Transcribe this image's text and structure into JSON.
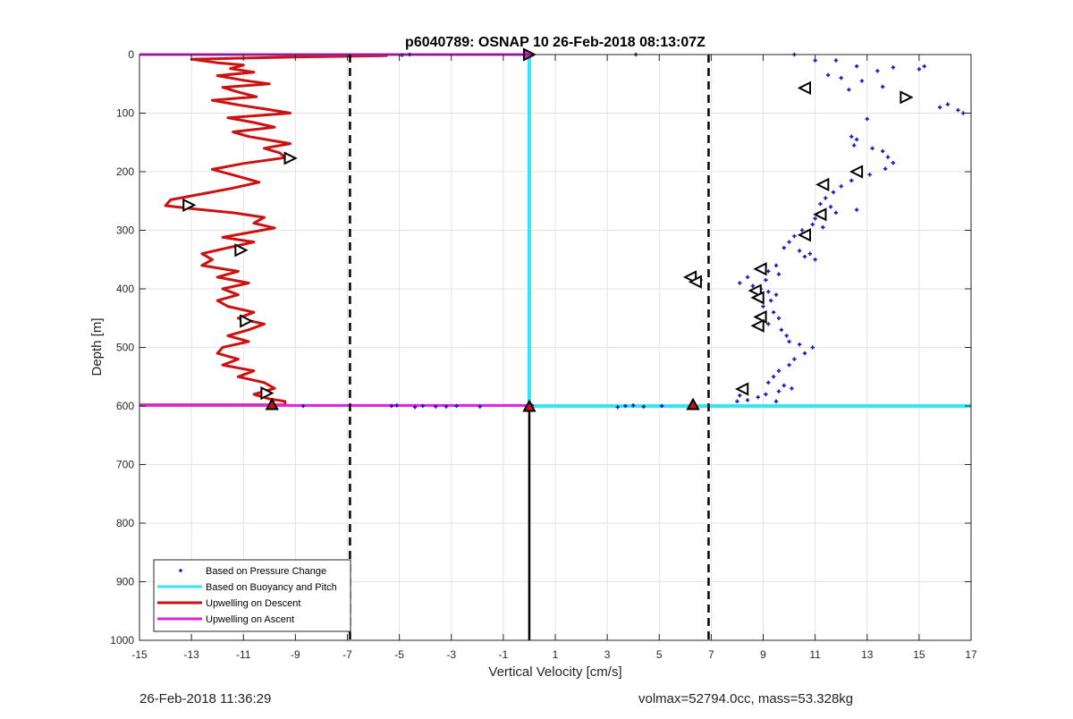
{
  "footer": {
    "left": "26-Feb-2018 11:36:29",
    "right": "volmax=52794.0cc, mass=53.328kg"
  },
  "colors": {
    "pressure": "#1515c8",
    "buoyancy": "#33e6f0",
    "descent": "#cc1111",
    "ascent": "#e020e0",
    "grid": "#e3e3e3",
    "dashed_lines": "#000000"
  },
  "chart_data": {
    "type": "scatter",
    "title": "p6040789: OSNAP 10 26-Feb-2018 08:13:07Z",
    "xlabel": "Vertical Velocity [cm/s]",
    "ylabel": "Depth [m]",
    "xlim": [
      -15,
      17
    ],
    "ylim": [
      1000,
      0
    ],
    "y_reversed": true,
    "xticks": [
      "-15",
      "-13",
      "-11",
      "-9",
      "-7",
      "-5",
      "-3",
      "-1",
      "1",
      "3",
      "5",
      "7",
      "9",
      "11",
      "13",
      "15",
      "17"
    ],
    "yticks": [
      "0",
      "100",
      "200",
      "300",
      "400",
      "500",
      "600",
      "700",
      "800",
      "900",
      "1000"
    ],
    "grid": true,
    "legend_position": "bottom-left",
    "legend": [
      {
        "label": "Based on Pressure Change",
        "style": "dot",
        "color": "#1515c8"
      },
      {
        "label": "Based on Buoyancy and Pitch",
        "style": "line",
        "color": "#33e6f0"
      },
      {
        "label": "Upwelling on Descent",
        "style": "line",
        "color": "#cc1111"
      },
      {
        "label": "Upwelling on Ascent",
        "style": "line",
        "color": "#e020e0"
      }
    ],
    "reference_lines": {
      "dashed_x": [
        -6.9,
        6.9
      ],
      "solid_x": 0,
      "solid_from_depth": 600
    },
    "series": [
      {
        "name": "Based on Pressure Change",
        "type": "scatter",
        "points": [
          [
            10.2,
            0
          ],
          [
            11,
            10
          ],
          [
            11.8,
            10
          ],
          [
            12.6,
            20
          ],
          [
            13.4,
            28
          ],
          [
            14,
            22
          ],
          [
            15.2,
            20
          ],
          [
            15,
            25
          ],
          [
            11.5,
            35
          ],
          [
            12,
            40
          ],
          [
            12.8,
            45
          ],
          [
            13.6,
            55
          ],
          [
            12.3,
            60
          ],
          [
            14.5,
            70
          ],
          [
            15.8,
            90
          ],
          [
            16.1,
            85
          ],
          [
            16.5,
            95
          ],
          [
            16.7,
            100
          ],
          [
            13,
            110
          ],
          [
            12.4,
            140
          ],
          [
            12.6,
            145
          ],
          [
            12.5,
            155
          ],
          [
            13.2,
            160
          ],
          [
            13.6,
            165
          ],
          [
            13.8,
            175
          ],
          [
            14,
            185
          ],
          [
            13.7,
            195
          ],
          [
            13.1,
            205
          ],
          [
            12.4,
            215
          ],
          [
            12,
            225
          ],
          [
            11.7,
            235
          ],
          [
            11.4,
            245
          ],
          [
            11.2,
            255
          ],
          [
            11.6,
            260
          ],
          [
            12.6,
            265
          ],
          [
            11.8,
            270
          ],
          [
            11,
            280
          ],
          [
            10.9,
            290
          ],
          [
            11.3,
            295
          ],
          [
            10.5,
            300
          ],
          [
            10.2,
            310
          ],
          [
            10,
            320
          ],
          [
            9.8,
            330
          ],
          [
            10.4,
            335
          ],
          [
            10.8,
            340
          ],
          [
            10.6,
            345
          ],
          [
            11,
            350
          ],
          [
            9.5,
            360
          ],
          [
            9.2,
            370
          ],
          [
            9.6,
            375
          ],
          [
            9.1,
            385
          ],
          [
            8.6,
            395
          ],
          [
            8.9,
            400
          ],
          [
            8.4,
            380
          ],
          [
            8.1,
            390
          ],
          [
            9.2,
            405
          ],
          [
            9.5,
            410
          ],
          [
            9.3,
            420
          ],
          [
            9,
            430
          ],
          [
            9.4,
            440
          ],
          [
            9.6,
            450
          ],
          [
            9.2,
            460
          ],
          [
            9.7,
            470
          ],
          [
            9.9,
            480
          ],
          [
            10,
            490
          ],
          [
            10.4,
            495
          ],
          [
            10.9,
            500
          ],
          [
            10.6,
            510
          ],
          [
            10.2,
            520
          ],
          [
            10,
            530
          ],
          [
            9.6,
            540
          ],
          [
            9.4,
            550
          ],
          [
            9.2,
            560
          ],
          [
            9.8,
            565
          ],
          [
            10.1,
            570
          ],
          [
            9.6,
            575
          ],
          [
            9.1,
            580
          ],
          [
            8.8,
            585
          ],
          [
            8.4,
            590
          ],
          [
            8.1,
            582
          ],
          [
            9.5,
            592
          ],
          [
            8,
            592
          ],
          [
            3.4,
            602
          ],
          [
            3.7,
            600
          ],
          [
            4,
            599
          ],
          [
            4.4,
            601
          ],
          [
            5.1,
            600
          ],
          [
            -3.6,
            601
          ],
          [
            -4.1,
            600
          ],
          [
            -4.4,
            602
          ],
          [
            -3.2,
            601
          ],
          [
            -2.8,
            600
          ],
          [
            -1.9,
            601
          ],
          [
            -5.1,
            599
          ],
          [
            -5.3,
            600
          ],
          [
            -8.7,
            600
          ],
          [
            -0.1,
            601
          ],
          [
            0.1,
            599
          ],
          [
            4.1,
            0
          ],
          [
            -4.9,
            1
          ],
          [
            -4.6,
            0
          ],
          [
            6.6,
            385
          ]
        ]
      },
      {
        "name": "Based on Buoyancy and Pitch",
        "type": "line",
        "segments": [
          [
            [
              0,
              0
            ],
            [
              0,
              600
            ]
          ],
          [
            [
              0,
              600
            ],
            [
              17,
              600
            ]
          ]
        ]
      },
      {
        "name": "Upwelling on Descent",
        "type": "line",
        "points": [
          [
            -15,
            0
          ],
          [
            -8,
            0
          ],
          [
            -5.5,
            2
          ],
          [
            -8.8,
            4
          ],
          [
            -13,
            8
          ],
          [
            -12,
            14
          ],
          [
            -11,
            18
          ],
          [
            -11.5,
            24
          ],
          [
            -10.6,
            30
          ],
          [
            -12,
            36
          ],
          [
            -11,
            44
          ],
          [
            -10,
            50
          ],
          [
            -11.8,
            56
          ],
          [
            -11.2,
            64
          ],
          [
            -10.5,
            72
          ],
          [
            -12.2,
            78
          ],
          [
            -11.2,
            86
          ],
          [
            -10,
            94
          ],
          [
            -9.2,
            100
          ],
          [
            -11.6,
            108
          ],
          [
            -10.6,
            116
          ],
          [
            -9.8,
            124
          ],
          [
            -11.4,
            132
          ],
          [
            -10.8,
            140
          ],
          [
            -10,
            146
          ],
          [
            -9.2,
            152
          ],
          [
            -10.2,
            160
          ],
          [
            -9.6,
            168
          ],
          [
            -9.4,
            176
          ],
          [
            -11,
            186
          ],
          [
            -12.2,
            196
          ],
          [
            -11.2,
            208
          ],
          [
            -10.4,
            218
          ],
          [
            -11.4,
            228
          ],
          [
            -12.6,
            238
          ],
          [
            -13.8,
            248
          ],
          [
            -14,
            258
          ],
          [
            -12.8,
            264
          ],
          [
            -11.4,
            270
          ],
          [
            -10.2,
            278
          ],
          [
            -10.6,
            288
          ],
          [
            -9.8,
            296
          ],
          [
            -10.8,
            304
          ],
          [
            -11.8,
            312
          ],
          [
            -10.6,
            320
          ],
          [
            -11.6,
            330
          ],
          [
            -12.6,
            340
          ],
          [
            -12.2,
            350
          ],
          [
            -12.6,
            360
          ],
          [
            -11.2,
            370
          ],
          [
            -12,
            380
          ],
          [
            -10.8,
            390
          ],
          [
            -11.8,
            400
          ],
          [
            -11.2,
            410
          ],
          [
            -12,
            420
          ],
          [
            -11.6,
            430
          ],
          [
            -10.6,
            440
          ],
          [
            -11.2,
            450
          ],
          [
            -10.2,
            460
          ],
          [
            -10.8,
            470
          ],
          [
            -11.6,
            480
          ],
          [
            -10.8,
            490
          ],
          [
            -11.8,
            500
          ],
          [
            -12,
            510
          ],
          [
            -11.2,
            520
          ],
          [
            -11.8,
            530
          ],
          [
            -10.6,
            540
          ],
          [
            -11.2,
            550
          ],
          [
            -10.2,
            560
          ],
          [
            -9.8,
            570
          ],
          [
            -10.6,
            580
          ],
          [
            -10,
            588
          ],
          [
            -9.4,
            592
          ],
          [
            -9.4,
            598
          ],
          [
            -15,
            598
          ]
        ]
      },
      {
        "name": "Upwelling on Ascent",
        "type": "line",
        "segments": [
          [
            [
              -15,
              0
            ],
            [
              0,
              0
            ]
          ],
          [
            [
              -15,
              599
            ],
            [
              0,
              599
            ]
          ]
        ]
      }
    ],
    "markers": [
      {
        "x": 0,
        "y": 0,
        "shape": "triangle-right",
        "fill": "#e020e0"
      },
      {
        "x": 10.6,
        "y": 57,
        "shape": "triangle-left"
      },
      {
        "x": 14.5,
        "y": 73,
        "shape": "triangle-right"
      },
      {
        "x": -9.2,
        "y": 177,
        "shape": "triangle-right"
      },
      {
        "x": 12.6,
        "y": 200,
        "shape": "triangle-left"
      },
      {
        "x": 11.3,
        "y": 222,
        "shape": "triangle-left"
      },
      {
        "x": -13.1,
        "y": 257,
        "shape": "triangle-right"
      },
      {
        "x": 11.2,
        "y": 273,
        "shape": "triangle-left"
      },
      {
        "x": 10.6,
        "y": 308,
        "shape": "triangle-left"
      },
      {
        "x": -11.1,
        "y": 334,
        "shape": "triangle-right"
      },
      {
        "x": 8.9,
        "y": 366,
        "shape": "triangle-left"
      },
      {
        "x": 6.2,
        "y": 380,
        "shape": "triangle-left"
      },
      {
        "x": 6.4,
        "y": 388,
        "shape": "triangle-left"
      },
      {
        "x": 8.7,
        "y": 403,
        "shape": "triangle-left"
      },
      {
        "x": 8.8,
        "y": 415,
        "shape": "triangle-left"
      },
      {
        "x": 8.9,
        "y": 448,
        "shape": "triangle-left"
      },
      {
        "x": -10.9,
        "y": 455,
        "shape": "triangle-right"
      },
      {
        "x": 8.8,
        "y": 463,
        "shape": "triangle-left"
      },
      {
        "x": 8.2,
        "y": 571,
        "shape": "triangle-left"
      },
      {
        "x": -10.1,
        "y": 578,
        "shape": "triangle-right"
      },
      {
        "x": -9.9,
        "y": 598,
        "shape": "triangle-up",
        "fill": "#cc1111"
      },
      {
        "x": 6.3,
        "y": 598,
        "shape": "triangle-up",
        "fill": "#cc1111"
      },
      {
        "x": 0,
        "y": 601,
        "shape": "triangle-up",
        "fill": "#cc1111"
      }
    ]
  }
}
